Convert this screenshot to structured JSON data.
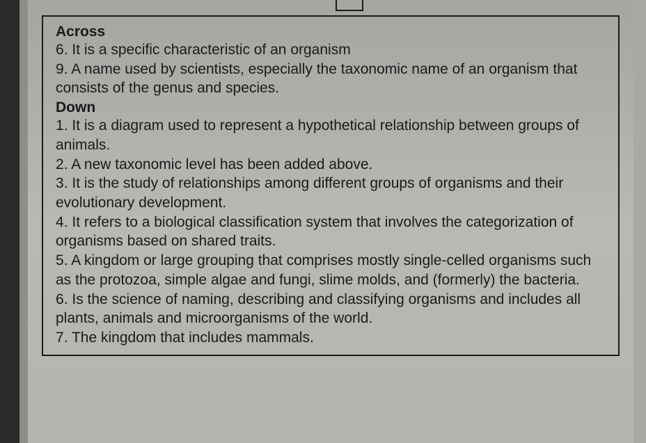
{
  "across": {
    "heading": "Across",
    "clues": [
      {
        "num": "6",
        "text": "It is a specific characteristic of an organism"
      },
      {
        "num": "9",
        "text": "A name used by scientists, especially the taxonomic name of an organism that consists of the genus and species."
      }
    ]
  },
  "down": {
    "heading": "Down",
    "clues": [
      {
        "num": "1",
        "text": "It is a diagram used to represent a hypothetical relationship between groups of animals."
      },
      {
        "num": "2",
        "text": "A new taxonomic level has been added above."
      },
      {
        "num": "3",
        "text": "It is the study of relationships among different groups of organisms and their evolutionary development."
      },
      {
        "num": "4",
        "text": "It refers to a biological classification system that involves the categorization of organisms based on shared traits."
      },
      {
        "num": "5",
        "text": "A kingdom or large grouping that comprises mostly single-celled organisms such as the protozoa, simple algae and fungi, slime molds, and (formerly) the bacteria."
      },
      {
        "num": "6",
        "text": "Is the science of naming, describing and classifying organisms and includes all plants, animals and microorganisms of the world."
      },
      {
        "num": "7",
        "text": "The kingdom that includes mammals."
      }
    ]
  }
}
